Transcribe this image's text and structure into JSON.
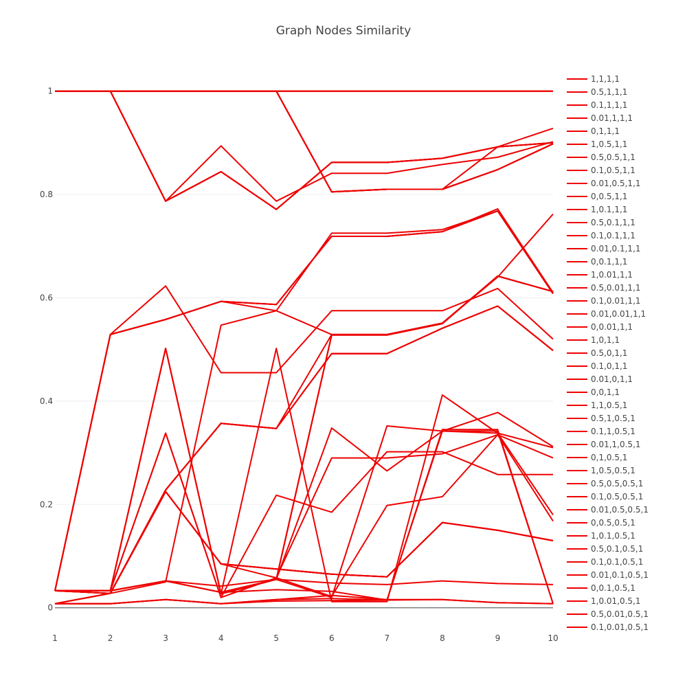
{
  "chart_data": {
    "type": "line",
    "title": "Graph Nodes Similarity",
    "xlabel": "",
    "ylabel": "",
    "x": [
      1,
      2,
      3,
      4,
      5,
      6,
      7,
      8,
      9,
      10
    ],
    "xlim": [
      1,
      10
    ],
    "ylim": [
      -0.007,
      1.05
    ],
    "yticks": [
      0,
      0.2,
      0.4,
      0.6,
      0.8,
      1
    ],
    "ytick_labels": [
      "0",
      "0.2",
      "0.4",
      "0.6",
      "0.8",
      "1"
    ],
    "xtick_labels": [
      "1",
      "2",
      "3",
      "4",
      "5",
      "6",
      "7",
      "8",
      "9",
      "10"
    ],
    "grid": true,
    "legend_position": "right",
    "series_color": "#ee0000",
    "series": [
      {
        "name": "1,1,1,1",
        "values": [
          1,
          1,
          1,
          1,
          1,
          1,
          1,
          1,
          1,
          1
        ]
      },
      {
        "name": "0.5,1,1,1",
        "values": [
          1,
          1,
          1,
          1,
          1,
          1,
          1,
          1,
          1,
          1
        ]
      },
      {
        "name": "0.1,1,1,1",
        "values": [
          1,
          1,
          1,
          1,
          1,
          1,
          1,
          1,
          1,
          1
        ]
      },
      {
        "name": "0.01,1,1,1",
        "values": [
          1,
          1,
          1,
          1,
          1,
          1,
          1,
          1,
          1,
          1
        ]
      },
      {
        "name": "0,1,1,1",
        "values": [
          1,
          1,
          1,
          1,
          1,
          1,
          1,
          1,
          1,
          1
        ]
      },
      {
        "name": "1,0.5,1,1",
        "values": [
          1,
          1,
          0.787,
          0.894,
          0.787,
          0.841,
          0.841,
          0.858,
          0.872,
          0.902
        ]
      },
      {
        "name": "0.5,0.5,1,1",
        "values": [
          1,
          1,
          0.787,
          0.844,
          0.771,
          0.862,
          0.862,
          0.87,
          0.892,
          0.9
        ]
      },
      {
        "name": "0.1,0.5,1,1",
        "values": [
          1,
          1,
          0.787,
          0.844,
          0.771,
          0.862,
          0.862,
          0.87,
          0.892,
          0.9
        ]
      },
      {
        "name": "0.01,0.5,1,1",
        "values": [
          1,
          1,
          0.787,
          0.844,
          0.771,
          0.862,
          0.862,
          0.87,
          0.892,
          0.9
        ]
      },
      {
        "name": "0,0.5,1,1",
        "values": [
          1,
          1,
          0.787,
          0.844,
          0.771,
          0.862,
          0.862,
          0.87,
          0.892,
          0.9
        ]
      },
      {
        "name": "1,0.1,1,1",
        "values": [
          1,
          1,
          1,
          1,
          1,
          0.805,
          0.81,
          0.81,
          0.848,
          0.898
        ]
      },
      {
        "name": "0.5,0.1,1,1",
        "values": [
          1,
          1,
          1,
          1,
          1,
          0.805,
          0.81,
          0.81,
          0.848,
          0.898
        ]
      },
      {
        "name": "0.1,0.1,1,1",
        "values": [
          1,
          1,
          1,
          1,
          1,
          0.805,
          0.81,
          0.81,
          0.848,
          0.898
        ]
      },
      {
        "name": "0.01,0.1,1,1",
        "values": [
          1,
          1,
          1,
          1,
          1,
          0.805,
          0.81,
          0.81,
          0.848,
          0.898
        ]
      },
      {
        "name": "0,0.1,1,1",
        "values": [
          1,
          1,
          1,
          1,
          1,
          0.805,
          0.81,
          0.81,
          0.892,
          0.928
        ]
      },
      {
        "name": "1,0.01,1,1",
        "values": [
          0.033,
          0.529,
          0.623,
          0.455,
          0.455,
          0.575,
          0.575,
          0.575,
          0.618,
          0.52
        ]
      },
      {
        "name": "0.5,0.01,1,1",
        "values": [
          0.033,
          0.529,
          0.558,
          0.593,
          0.587,
          0.719,
          0.719,
          0.728,
          0.772,
          0.61
        ]
      },
      {
        "name": "0.1,0.01,1,1",
        "values": [
          0.033,
          0.529,
          0.558,
          0.593,
          0.587,
          0.719,
          0.719,
          0.728,
          0.768,
          0.608
        ]
      },
      {
        "name": "0.01,0.01,1,1",
        "values": [
          0.033,
          0.529,
          0.558,
          0.593,
          0.575,
          0.725,
          0.725,
          0.732,
          0.768,
          0.608
        ]
      },
      {
        "name": "0,0.01,1,1",
        "values": [
          0.033,
          0.529,
          0.558,
          0.593,
          0.587,
          0.719,
          0.719,
          0.728,
          0.768,
          0.608
        ]
      },
      {
        "name": "1,0,1,1",
        "values": [
          0.033,
          0.028,
          0.05,
          0.547,
          0.575,
          0.529,
          0.529,
          0.551,
          0.64,
          0.762
        ]
      },
      {
        "name": "0.5,0,1,1",
        "values": [
          0.033,
          0.028,
          0.228,
          0.357,
          0.347,
          0.529,
          0.529,
          0.551,
          0.642,
          0.612
        ]
      },
      {
        "name": "0.1,0,1,1",
        "values": [
          0.033,
          0.028,
          0.228,
          0.357,
          0.347,
          0.492,
          0.492,
          0.541,
          0.584,
          0.498
        ]
      },
      {
        "name": "0.01,0,1,1",
        "values": [
          0.033,
          0.028,
          0.228,
          0.357,
          0.347,
          0.492,
          0.492,
          0.541,
          0.584,
          0.498
        ]
      },
      {
        "name": "0,0,1,1",
        "values": [
          0.033,
          0.028,
          0.228,
          0.357,
          0.347,
          0.492,
          0.492,
          0.541,
          0.584,
          0.498
        ]
      },
      {
        "name": "1,1,0.5,1",
        "values": [
          0.033,
          0.033,
          0.502,
          0.027,
          0.502,
          0.012,
          0.012,
          0.412,
          0.338,
          0.31
        ]
      },
      {
        "name": "0.5,1,0.5,1",
        "values": [
          0.033,
          0.033,
          0.502,
          0.027,
          0.055,
          0.348,
          0.265,
          0.342,
          0.338,
          0.18
        ]
      },
      {
        "name": "0.1,1,0.5,1",
        "values": [
          0.033,
          0.033,
          0.502,
          0.027,
          0.055,
          0.02,
          0.352,
          0.342,
          0.378,
          0.312
        ]
      },
      {
        "name": "0.01,1,0.5,1",
        "values": [
          0.033,
          0.033,
          0.338,
          0.02,
          0.218,
          0.185,
          0.302,
          0.302,
          0.258,
          0.258
        ]
      },
      {
        "name": "0,1,0.5,1",
        "values": [
          0.033,
          0.033,
          0.338,
          0.02,
          0.058,
          0.29,
          0.29,
          0.298,
          0.335,
          0.29
        ]
      },
      {
        "name": "1,0.5,0.5,1",
        "values": [
          0.008,
          0.028,
          0.225,
          0.085,
          0.058,
          0.022,
          0.198,
          0.215,
          0.335,
          0.168
        ]
      },
      {
        "name": "0.5,0.5,0.5,1",
        "values": [
          0.008,
          0.028,
          0.225,
          0.085,
          0.075,
          0.065,
          0.06,
          0.165,
          0.15,
          0.13
        ]
      },
      {
        "name": "0.1,0.5,0.5,1",
        "values": [
          0.008,
          0.028,
          0.225,
          0.085,
          0.075,
          0.065,
          0.06,
          0.165,
          0.15,
          0.13
        ]
      },
      {
        "name": "0.01,0.5,0.5,1",
        "values": [
          0.008,
          0.028,
          0.225,
          0.085,
          0.075,
          0.065,
          0.06,
          0.165,
          0.15,
          0.13
        ]
      },
      {
        "name": "0,0.5,0.5,1",
        "values": [
          0.008,
          0.028,
          0.225,
          0.085,
          0.075,
          0.065,
          0.06,
          0.165,
          0.15,
          0.13
        ]
      },
      {
        "name": "1,0.1,0.5,1",
        "values": [
          0.033,
          0.033,
          0.052,
          0.042,
          0.055,
          0.048,
          0.045,
          0.052,
          0.047,
          0.045
        ]
      },
      {
        "name": "0.5,0.1,0.5,1",
        "values": [
          0.033,
          0.033,
          0.052,
          0.03,
          0.055,
          0.528,
          0.528,
          0.55,
          0.642,
          0.612
        ]
      },
      {
        "name": "0.1,0.1,0.5,1",
        "values": [
          0.033,
          0.033,
          0.052,
          0.03,
          0.055,
          0.528,
          0.528,
          0.55,
          0.642,
          0.612
        ]
      },
      {
        "name": "0.01,0.1,0.5,1",
        "values": [
          0.033,
          0.033,
          0.052,
          0.03,
          0.055,
          0.528,
          0.528,
          0.55,
          0.642,
          0.612
        ]
      },
      {
        "name": "0,0.1,0.5,1",
        "values": [
          0.033,
          0.033,
          0.052,
          0.03,
          0.035,
          0.032,
          0.015,
          0.345,
          0.345,
          0.008
        ]
      },
      {
        "name": "1,0.01,0.5,1",
        "values": [
          0.008,
          0.008,
          0.016,
          0.008,
          0.016,
          0.018,
          0.015,
          0.342,
          0.342,
          0.008
        ]
      },
      {
        "name": "0.5,0.01,0.5,1",
        "values": [
          0.008,
          0.008,
          0.016,
          0.008,
          0.016,
          0.024,
          0.016,
          0.016,
          0.01,
          0.008
        ]
      },
      {
        "name": "0.1,0.01,0.5,1",
        "values": [
          0.008,
          0.008,
          0.016,
          0.008,
          0.013,
          0.014,
          0.015,
          0.016,
          0.01,
          0.008
        ]
      }
    ]
  }
}
